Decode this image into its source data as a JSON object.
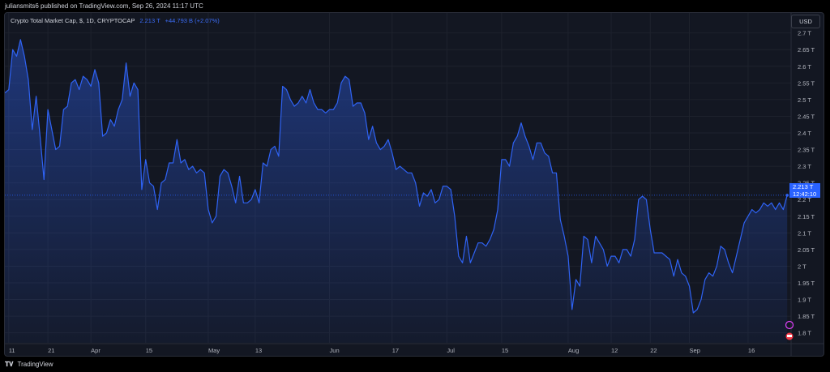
{
  "header": {
    "published": "juliansmits6 published on TradingView.com, Sep 26, 2024 11:17 UTC"
  },
  "legend": {
    "name": "Crypto Total Market Cap, $, 1D, CRYPTOCAP",
    "last": "2.213 T",
    "change": "+44.793 B (+2.07%)"
  },
  "currency": "USD",
  "price_label": {
    "value": "2.213 T",
    "countdown": "12:42:10"
  },
  "footer": {
    "brand": "TradingView"
  },
  "colors": {
    "line": "#2f63f5",
    "background": "#131722",
    "label": "#2962ff"
  },
  "chart_data": {
    "type": "area",
    "ylabel_unit": "T",
    "ylim": [
      1.77,
      2.76
    ],
    "yticks": [
      1.8,
      1.85,
      1.9,
      1.95,
      2.0,
      2.05,
      2.1,
      2.15,
      2.2,
      2.25,
      2.3,
      2.35,
      2.4,
      2.45,
      2.5,
      2.55,
      2.6,
      2.65,
      2.7
    ],
    "ytick_labels": [
      "1.8 T",
      "1.85 T",
      "1.9 T",
      "1.95 T",
      "2 T",
      "2.05 T",
      "2.1 T",
      "2.15 T",
      "2.2 T",
      "2.25 T",
      "2.3 T",
      "2.35 T",
      "2.4 T",
      "2.45 T",
      "2.5 T",
      "2.55 T",
      "2.6 T",
      "2.65 T",
      "2.7 T"
    ],
    "x_start": "2024-03-10",
    "x_end": "2024-09-27",
    "xticks": [
      {
        "label": "11",
        "date": "2024-03-11"
      },
      {
        "label": "21",
        "date": "2024-03-21"
      },
      {
        "label": "Apr",
        "date": "2024-04-01"
      },
      {
        "label": "15",
        "date": "2024-04-15"
      },
      {
        "label": "May",
        "date": "2024-05-01"
      },
      {
        "label": "13",
        "date": "2024-05-13"
      },
      {
        "label": "Jun",
        "date": "2024-06-01"
      },
      {
        "label": "17",
        "date": "2024-06-17"
      },
      {
        "label": "Jul",
        "date": "2024-07-01"
      },
      {
        "label": "15",
        "date": "2024-07-15"
      },
      {
        "label": "Aug",
        "date": "2024-08-01"
      },
      {
        "label": "12",
        "date": "2024-08-12"
      },
      {
        "label": "22",
        "date": "2024-08-22"
      },
      {
        "label": "Sep",
        "date": "2024-09-01"
      },
      {
        "label": "16",
        "date": "2024-09-16"
      }
    ],
    "series": [
      {
        "values": [
          [
            "2024-03-10",
            2.52
          ],
          [
            "2024-03-11",
            2.53
          ],
          [
            "2024-03-12",
            2.65
          ],
          [
            "2024-03-13",
            2.63
          ],
          [
            "2024-03-14",
            2.68
          ],
          [
            "2024-03-15",
            2.63
          ],
          [
            "2024-03-16",
            2.56
          ],
          [
            "2024-03-17",
            2.41
          ],
          [
            "2024-03-18",
            2.51
          ],
          [
            "2024-03-19",
            2.39
          ],
          [
            "2024-03-20",
            2.26
          ],
          [
            "2024-03-21",
            2.47
          ],
          [
            "2024-03-22",
            2.41
          ],
          [
            "2024-03-23",
            2.35
          ],
          [
            "2024-03-24",
            2.36
          ],
          [
            "2024-03-25",
            2.47
          ],
          [
            "2024-03-26",
            2.48
          ],
          [
            "2024-03-27",
            2.55
          ],
          [
            "2024-03-28",
            2.56
          ],
          [
            "2024-03-29",
            2.53
          ],
          [
            "2024-03-30",
            2.57
          ],
          [
            "2024-03-31",
            2.56
          ],
          [
            "2024-04-01",
            2.54
          ],
          [
            "2024-04-02",
            2.59
          ],
          [
            "2024-04-03",
            2.55
          ],
          [
            "2024-04-04",
            2.39
          ],
          [
            "2024-04-05",
            2.4
          ],
          [
            "2024-04-06",
            2.44
          ],
          [
            "2024-04-07",
            2.42
          ],
          [
            "2024-04-08",
            2.47
          ],
          [
            "2024-04-09",
            2.5
          ],
          [
            "2024-04-10",
            2.61
          ],
          [
            "2024-04-11",
            2.51
          ],
          [
            "2024-04-12",
            2.55
          ],
          [
            "2024-04-13",
            2.53
          ],
          [
            "2024-04-14",
            2.23
          ],
          [
            "2024-04-15",
            2.32
          ],
          [
            "2024-04-16",
            2.25
          ],
          [
            "2024-04-17",
            2.24
          ],
          [
            "2024-04-18",
            2.17
          ],
          [
            "2024-04-19",
            2.25
          ],
          [
            "2024-04-20",
            2.26
          ],
          [
            "2024-04-21",
            2.31
          ],
          [
            "2024-04-22",
            2.31
          ],
          [
            "2024-04-23",
            2.38
          ],
          [
            "2024-04-24",
            2.31
          ],
          [
            "2024-04-25",
            2.32
          ],
          [
            "2024-04-26",
            2.29
          ],
          [
            "2024-04-27",
            2.3
          ],
          [
            "2024-04-28",
            2.28
          ],
          [
            "2024-04-29",
            2.29
          ],
          [
            "2024-04-30",
            2.28
          ],
          [
            "2024-05-01",
            2.17
          ],
          [
            "2024-05-02",
            2.13
          ],
          [
            "2024-05-03",
            2.15
          ],
          [
            "2024-05-04",
            2.27
          ],
          [
            "2024-05-05",
            2.29
          ],
          [
            "2024-05-06",
            2.28
          ],
          [
            "2024-05-07",
            2.24
          ],
          [
            "2024-05-08",
            2.19
          ],
          [
            "2024-05-09",
            2.27
          ],
          [
            "2024-05-10",
            2.19
          ],
          [
            "2024-05-11",
            2.19
          ],
          [
            "2024-05-12",
            2.2
          ],
          [
            "2024-05-13",
            2.23
          ],
          [
            "2024-05-14",
            2.19
          ],
          [
            "2024-05-15",
            2.31
          ],
          [
            "2024-05-16",
            2.3
          ],
          [
            "2024-05-17",
            2.35
          ],
          [
            "2024-05-18",
            2.36
          ],
          [
            "2024-05-19",
            2.33
          ],
          [
            "2024-05-20",
            2.54
          ],
          [
            "2024-05-21",
            2.53
          ],
          [
            "2024-05-22",
            2.5
          ],
          [
            "2024-05-23",
            2.48
          ],
          [
            "2024-05-24",
            2.49
          ],
          [
            "2024-05-25",
            2.51
          ],
          [
            "2024-05-26",
            2.49
          ],
          [
            "2024-05-27",
            2.53
          ],
          [
            "2024-05-28",
            2.49
          ],
          [
            "2024-05-29",
            2.47
          ],
          [
            "2024-05-30",
            2.47
          ],
          [
            "2024-05-31",
            2.46
          ],
          [
            "2024-06-01",
            2.47
          ],
          [
            "2024-06-02",
            2.47
          ],
          [
            "2024-06-03",
            2.49
          ],
          [
            "2024-06-04",
            2.55
          ],
          [
            "2024-06-05",
            2.57
          ],
          [
            "2024-06-06",
            2.56
          ],
          [
            "2024-06-07",
            2.48
          ],
          [
            "2024-06-08",
            2.49
          ],
          [
            "2024-06-09",
            2.49
          ],
          [
            "2024-06-10",
            2.46
          ],
          [
            "2024-06-11",
            2.38
          ],
          [
            "2024-06-12",
            2.42
          ],
          [
            "2024-06-13",
            2.37
          ],
          [
            "2024-06-14",
            2.35
          ],
          [
            "2024-06-15",
            2.36
          ],
          [
            "2024-06-16",
            2.38
          ],
          [
            "2024-06-17",
            2.34
          ],
          [
            "2024-06-18",
            2.29
          ],
          [
            "2024-06-19",
            2.3
          ],
          [
            "2024-06-20",
            2.29
          ],
          [
            "2024-06-21",
            2.28
          ],
          [
            "2024-06-22",
            2.28
          ],
          [
            "2024-06-23",
            2.25
          ],
          [
            "2024-06-24",
            2.18
          ],
          [
            "2024-06-25",
            2.22
          ],
          [
            "2024-06-26",
            2.21
          ],
          [
            "2024-06-27",
            2.23
          ],
          [
            "2024-06-28",
            2.19
          ],
          [
            "2024-06-29",
            2.2
          ],
          [
            "2024-06-30",
            2.24
          ],
          [
            "2024-07-01",
            2.24
          ],
          [
            "2024-07-02",
            2.23
          ],
          [
            "2024-07-03",
            2.15
          ],
          [
            "2024-07-04",
            2.03
          ],
          [
            "2024-07-05",
            2.01
          ],
          [
            "2024-07-06",
            2.09
          ],
          [
            "2024-07-07",
            2.01
          ],
          [
            "2024-07-08",
            2.04
          ],
          [
            "2024-07-09",
            2.07
          ],
          [
            "2024-07-10",
            2.07
          ],
          [
            "2024-07-11",
            2.06
          ],
          [
            "2024-07-12",
            2.08
          ],
          [
            "2024-07-13",
            2.11
          ],
          [
            "2024-07-14",
            2.17
          ],
          [
            "2024-07-15",
            2.32
          ],
          [
            "2024-07-16",
            2.32
          ],
          [
            "2024-07-17",
            2.3
          ],
          [
            "2024-07-18",
            2.37
          ],
          [
            "2024-07-19",
            2.39
          ],
          [
            "2024-07-20",
            2.43
          ],
          [
            "2024-07-21",
            2.39
          ],
          [
            "2024-07-22",
            2.36
          ],
          [
            "2024-07-23",
            2.32
          ],
          [
            "2024-07-24",
            2.37
          ],
          [
            "2024-07-25",
            2.37
          ],
          [
            "2024-07-26",
            2.34
          ],
          [
            "2024-07-27",
            2.33
          ],
          [
            "2024-07-28",
            2.28
          ],
          [
            "2024-07-29",
            2.28
          ],
          [
            "2024-07-30",
            2.14
          ],
          [
            "2024-07-31",
            2.09
          ],
          [
            "2024-08-01",
            2.03
          ],
          [
            "2024-08-02",
            1.87
          ],
          [
            "2024-08-03",
            1.96
          ],
          [
            "2024-08-04",
            1.94
          ],
          [
            "2024-08-05",
            2.09
          ],
          [
            "2024-08-06",
            2.08
          ],
          [
            "2024-08-07",
            2.01
          ],
          [
            "2024-08-08",
            2.09
          ],
          [
            "2024-08-09",
            2.07
          ],
          [
            "2024-08-10",
            2.05
          ],
          [
            "2024-08-11",
            2.0
          ],
          [
            "2024-08-12",
            2.03
          ],
          [
            "2024-08-13",
            2.03
          ],
          [
            "2024-08-14",
            2.01
          ],
          [
            "2024-08-15",
            2.05
          ],
          [
            "2024-08-16",
            2.05
          ],
          [
            "2024-08-17",
            2.03
          ],
          [
            "2024-08-18",
            2.08
          ],
          [
            "2024-08-19",
            2.2
          ],
          [
            "2024-08-20",
            2.21
          ],
          [
            "2024-08-21",
            2.2
          ],
          [
            "2024-08-22",
            2.11
          ],
          [
            "2024-08-23",
            2.04
          ],
          [
            "2024-08-24",
            2.04
          ],
          [
            "2024-08-25",
            2.04
          ],
          [
            "2024-08-26",
            2.03
          ],
          [
            "2024-08-27",
            2.02
          ],
          [
            "2024-08-28",
            1.97
          ],
          [
            "2024-08-29",
            2.02
          ],
          [
            "2024-08-30",
            1.98
          ],
          [
            "2024-08-31",
            1.97
          ],
          [
            "2024-09-01",
            1.94
          ],
          [
            "2024-09-02",
            1.86
          ],
          [
            "2024-09-03",
            1.87
          ],
          [
            "2024-09-04",
            1.9
          ],
          [
            "2024-09-05",
            1.96
          ],
          [
            "2024-09-06",
            1.98
          ],
          [
            "2024-09-07",
            1.97
          ],
          [
            "2024-09-08",
            2.0
          ],
          [
            "2024-09-09",
            2.06
          ],
          [
            "2024-09-10",
            2.05
          ],
          [
            "2024-09-11",
            2.01
          ],
          [
            "2024-09-12",
            1.98
          ],
          [
            "2024-09-13",
            2.03
          ],
          [
            "2024-09-14",
            2.08
          ],
          [
            "2024-09-15",
            2.13
          ],
          [
            "2024-09-16",
            2.15
          ],
          [
            "2024-09-17",
            2.17
          ],
          [
            "2024-09-18",
            2.16
          ],
          [
            "2024-09-19",
            2.17
          ],
          [
            "2024-09-20",
            2.19
          ],
          [
            "2024-09-21",
            2.18
          ],
          [
            "2024-09-22",
            2.19
          ],
          [
            "2024-09-23",
            2.17
          ],
          [
            "2024-09-24",
            2.19
          ],
          [
            "2024-09-25",
            2.17
          ],
          [
            "2024-09-26",
            2.213
          ]
        ]
      }
    ],
    "grid": true,
    "legend": "top-left"
  }
}
